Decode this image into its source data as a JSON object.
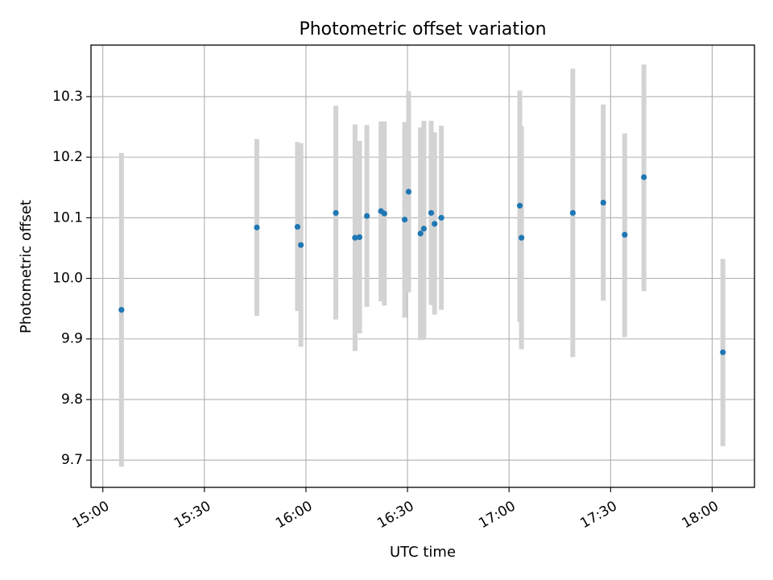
{
  "chart_data": {
    "type": "scatter",
    "title": "Photometric offset variation",
    "xlabel": "UTC time",
    "ylabel": "Photometric offset",
    "x_is_time": true,
    "xlim": [
      "14:56:30",
      "18:12:30"
    ],
    "ylim": [
      9.655,
      10.385
    ],
    "x_ticks": [
      "15:00",
      "15:30",
      "16:00",
      "16:30",
      "17:00",
      "17:30",
      "18:00"
    ],
    "y_ticks": [
      9.7,
      9.8,
      9.9,
      10.0,
      10.1,
      10.2,
      10.3
    ],
    "y_tick_labels": [
      "9.7",
      "9.8",
      "9.9",
      "10.0",
      "10.1",
      "10.2",
      "10.3"
    ],
    "grid": true,
    "x_tick_rotation_deg": 30,
    "marker_color": "#1f77b4",
    "errorbar_color": "#d3d3d3",
    "points": [
      {
        "x": "15:05:30",
        "y": 9.948,
        "ylow": 9.689,
        "yhigh": 10.207
      },
      {
        "x": "15:45:30",
        "y": 10.084,
        "ylow": 9.938,
        "yhigh": 10.23
      },
      {
        "x": "15:57:30",
        "y": 10.085,
        "ylow": 9.946,
        "yhigh": 10.225
      },
      {
        "x": "15:58:30",
        "y": 10.055,
        "ylow": 9.887,
        "yhigh": 10.223
      },
      {
        "x": "16:08:50",
        "y": 10.108,
        "ylow": 9.932,
        "yhigh": 10.285
      },
      {
        "x": "16:14:30",
        "y": 10.067,
        "ylow": 9.88,
        "yhigh": 10.254
      },
      {
        "x": "16:15:50",
        "y": 10.068,
        "ylow": 9.909,
        "yhigh": 10.227
      },
      {
        "x": "16:18:00",
        "y": 10.103,
        "ylow": 9.953,
        "yhigh": 10.253
      },
      {
        "x": "16:22:10",
        "y": 10.111,
        "ylow": 9.962,
        "yhigh": 10.259
      },
      {
        "x": "16:23:10",
        "y": 10.107,
        "ylow": 9.955,
        "yhigh": 10.259
      },
      {
        "x": "16:29:10",
        "y": 10.097,
        "ylow": 9.935,
        "yhigh": 10.258
      },
      {
        "x": "16:30:20",
        "y": 10.143,
        "ylow": 9.977,
        "yhigh": 10.309
      },
      {
        "x": "16:33:50",
        "y": 10.074,
        "ylow": 9.898,
        "yhigh": 10.249
      },
      {
        "x": "16:34:50",
        "y": 10.082,
        "ylow": 9.901,
        "yhigh": 10.26
      },
      {
        "x": "16:37:00",
        "y": 10.108,
        "ylow": 9.956,
        "yhigh": 10.26
      },
      {
        "x": "16:38:00",
        "y": 10.09,
        "ylow": 9.94,
        "yhigh": 10.241
      },
      {
        "x": "16:40:00",
        "y": 10.1,
        "ylow": 9.948,
        "yhigh": 10.252
      },
      {
        "x": "17:03:10",
        "y": 10.12,
        "ylow": 9.928,
        "yhigh": 10.31
      },
      {
        "x": "17:03:40",
        "y": 10.067,
        "ylow": 9.883,
        "yhigh": 10.251
      },
      {
        "x": "17:18:50",
        "y": 10.108,
        "ylow": 9.87,
        "yhigh": 10.346
      },
      {
        "x": "17:27:50",
        "y": 10.125,
        "ylow": 9.963,
        "yhigh": 10.287
      },
      {
        "x": "17:34:10",
        "y": 10.072,
        "ylow": 9.903,
        "yhigh": 10.239
      },
      {
        "x": "17:39:50",
        "y": 10.167,
        "ylow": 9.979,
        "yhigh": 10.353
      },
      {
        "x": "18:03:10",
        "y": 9.878,
        "ylow": 9.723,
        "yhigh": 10.032
      }
    ]
  }
}
